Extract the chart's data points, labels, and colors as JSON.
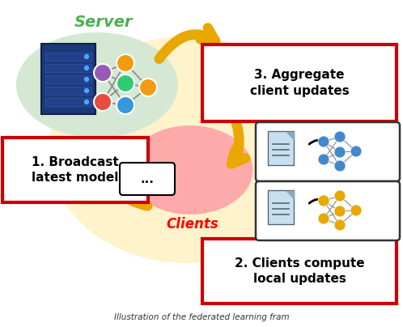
{
  "caption": "Illustration of the federated learning fram",
  "background_color": "#ffffff",
  "server_label": "Server",
  "server_label_color": "#4CAF50",
  "clients_label": "Clients",
  "clients_label_color": "#FF0000",
  "box1_text": "1. Broadcast\nlatest model",
  "box2_text": "2. Clients compute\nlocal updates",
  "box3_text": "3. Aggregate\nclient updates",
  "box_edge_color": "#CC0000",
  "box_face_color": "#FFFFFF",
  "arrow_color": "#E8A800",
  "server_oval_color": "#D5E8D4",
  "clients_oval_color": "#FFAAAA",
  "main_bg_oval_color": "#FFF3CC",
  "fig_width": 4.98,
  "fig_height": 4.04,
  "dpi": 100
}
